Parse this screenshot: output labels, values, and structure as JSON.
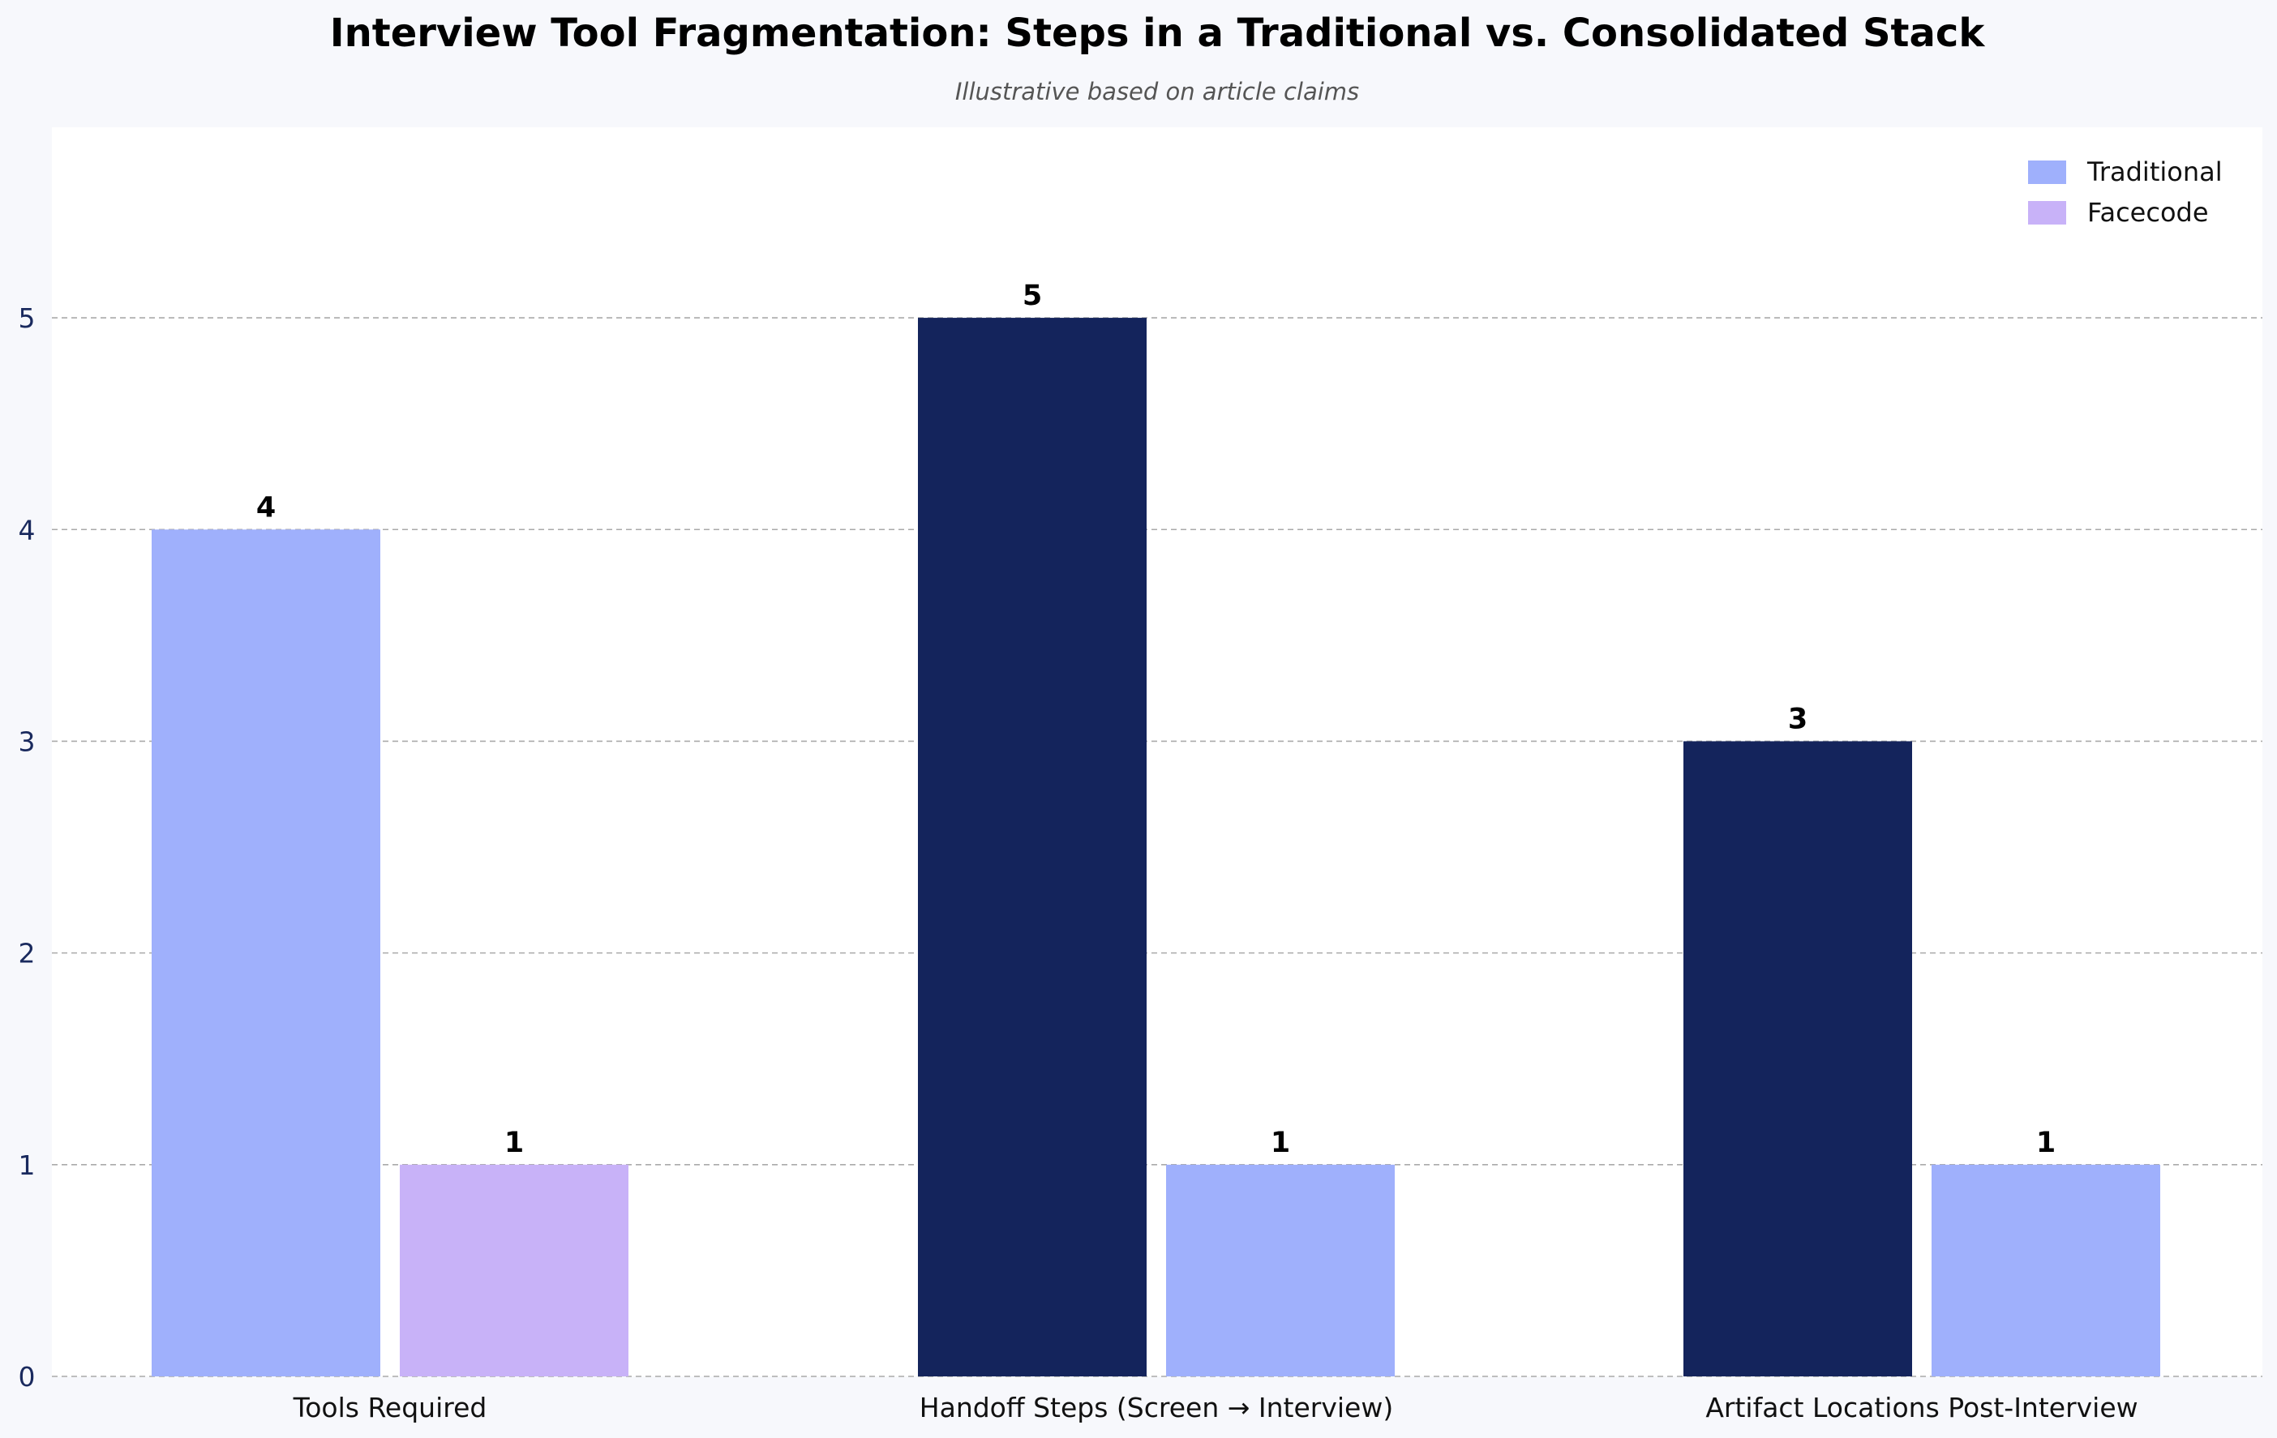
{
  "title": "Interview Tool Fragmentation: Steps in a Traditional vs. Consolidated Stack",
  "subtitle": "Illustrative based on article claims",
  "legend": [
    {
      "label": "Traditional",
      "color": "#9fb0fc"
    },
    {
      "label": "Facecode",
      "color": "#c8b2f8"
    }
  ],
  "colors": {
    "navy": "#14245c",
    "periwinkle": "#9fb0fc",
    "lavender": "#c8b2f8"
  },
  "chart_data": {
    "type": "bar",
    "title": "Interview Tool Fragmentation: Steps in a Traditional vs. Consolidated Stack",
    "subtitle": "Illustrative based on article claims",
    "categories": [
      "Tools Required",
      "Handoff Steps (Screen → Interview)",
      "Artifact Locations Post-Interview"
    ],
    "series": [
      {
        "name": "Traditional",
        "values": [
          4,
          5,
          3
        ],
        "colors": [
          "#9fb0fc",
          "#14245c",
          "#14245c"
        ]
      },
      {
        "name": "Facecode",
        "values": [
          1,
          1,
          1
        ],
        "colors": [
          "#c8b2f8",
          "#9fb0fc",
          "#9fb0fc"
        ]
      }
    ],
    "data_labels": [
      [
        "4",
        "5",
        "3"
      ],
      [
        "1",
        "1",
        "1"
      ]
    ],
    "yticks": [
      "0",
      "1",
      "2",
      "3",
      "4",
      "5"
    ],
    "ylim": [
      0,
      5.9
    ],
    "xlabel": "",
    "ylabel": "",
    "grid": "horizontal dashed",
    "legend_position": "top-right"
  }
}
